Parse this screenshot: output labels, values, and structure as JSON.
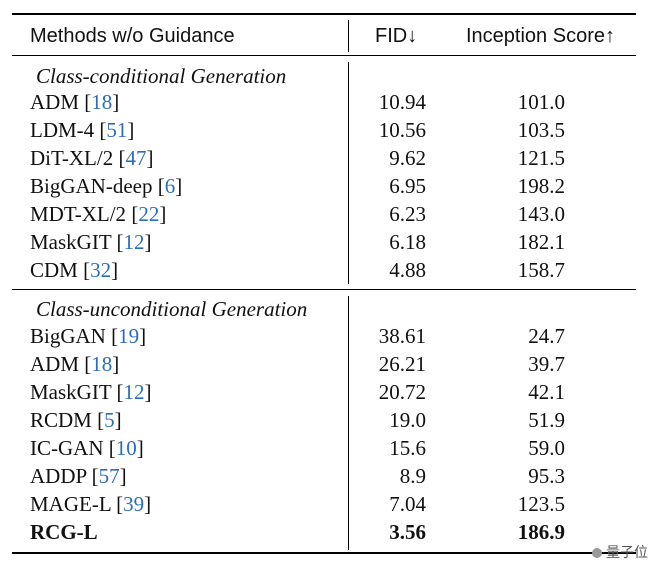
{
  "header": {
    "methods": "Methods w/o Guidance",
    "fid": "FID↓",
    "inception": "Inception Score↑"
  },
  "sections": [
    {
      "title": "Class-conditional Generation",
      "rows": [
        {
          "method": "ADM",
          "cite": "18",
          "fid": "10.94",
          "is": "101.0"
        },
        {
          "method": "LDM-4",
          "cite": "51",
          "fid": "10.56",
          "is": "103.5"
        },
        {
          "method": "DiT-XL/2",
          "cite": "47",
          "fid": "9.62",
          "is": "121.5"
        },
        {
          "method": "BigGAN-deep",
          "cite": "6",
          "fid": "6.95",
          "is": "198.2"
        },
        {
          "method": "MDT-XL/2",
          "cite": "22",
          "fid": "6.23",
          "is": "143.0"
        },
        {
          "method": "MaskGIT",
          "cite": "12",
          "fid": "6.18",
          "is": "182.1"
        },
        {
          "method": "CDM",
          "cite": "32",
          "fid": "4.88",
          "is": "158.7"
        }
      ]
    },
    {
      "title": "Class-unconditional Generation",
      "rows": [
        {
          "method": "BigGAN",
          "cite": "19",
          "fid": "38.61",
          "is": "24.7"
        },
        {
          "method": "ADM",
          "cite": "18",
          "fid": "26.21",
          "is": "39.7"
        },
        {
          "method": "MaskGIT",
          "cite": "12",
          "fid": "20.72",
          "is": "42.1"
        },
        {
          "method": "RCDM",
          "cite": "5",
          "fid": "19.0",
          "is": "51.9"
        },
        {
          "method": "IC-GAN",
          "cite": "10",
          "fid": "15.6",
          "is": "59.0"
        },
        {
          "method": "ADDP",
          "cite": "57",
          "fid": "8.9",
          "is": "95.3"
        },
        {
          "method": "MAGE-L",
          "cite": "39",
          "fid": "7.04",
          "is": "123.5"
        },
        {
          "method": "RCG-L",
          "cite": "",
          "fid": "3.56",
          "is": "186.9",
          "bold": true
        }
      ]
    }
  ],
  "watermark": "量子位"
}
